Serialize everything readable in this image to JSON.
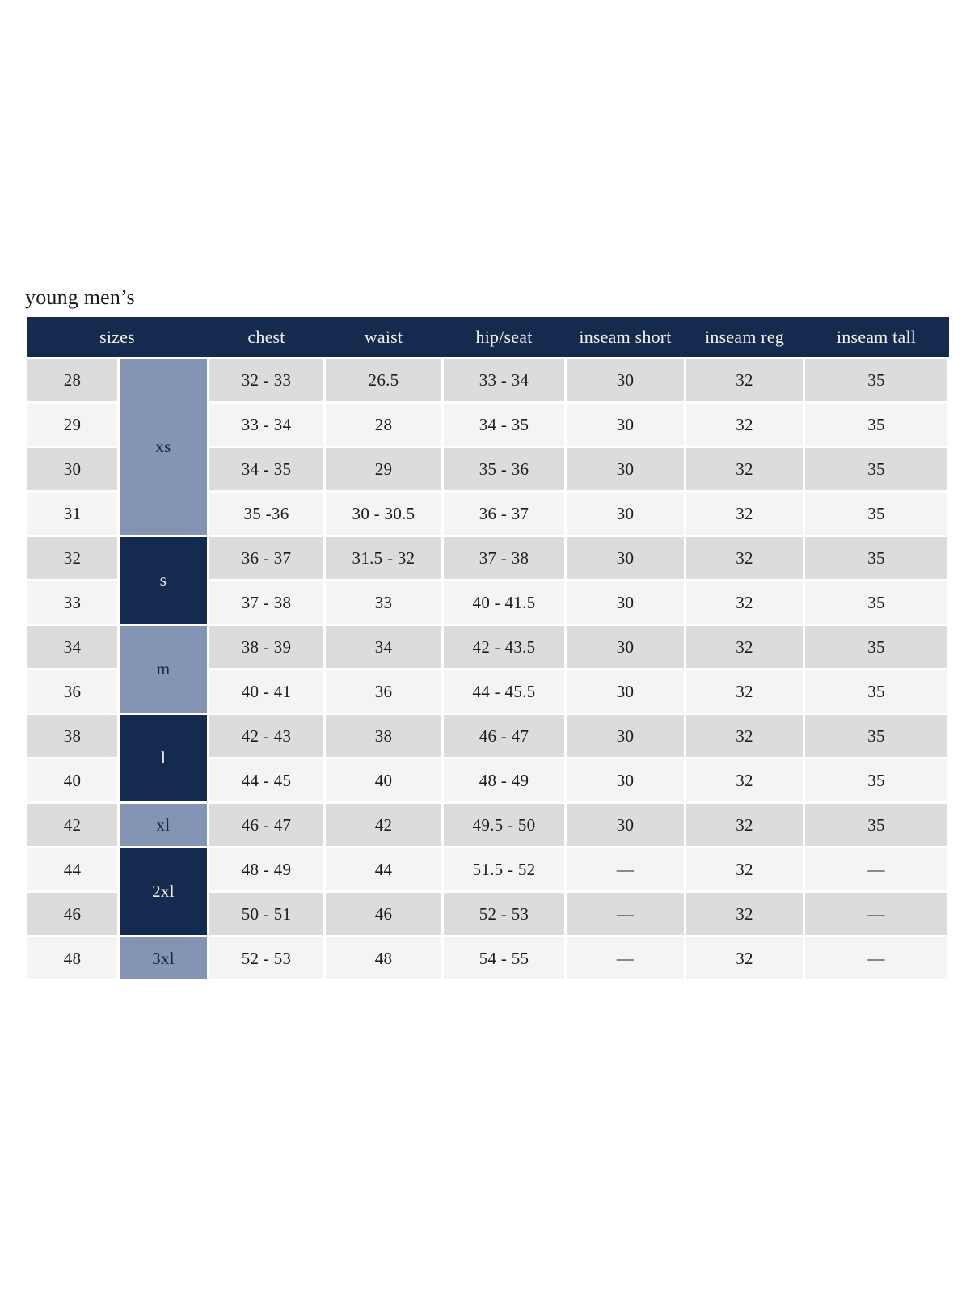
{
  "page": {
    "title": "young men’s"
  },
  "colors": {
    "header_bg": "#142a4e",
    "group_dark_bg": "#142a4e",
    "group_light_bg": "#8494b4",
    "row_odd_bg": "#dcdcdc",
    "row_even_bg": "#f4f4f2",
    "header_text": "#f4f3ef",
    "body_text": "#1c1c1c"
  },
  "table": {
    "headers": [
      "sizes",
      "chest",
      "waist",
      "hip/seat",
      "inseam short",
      "inseam reg",
      "inseam tall"
    ],
    "groups": [
      {
        "label": "xs",
        "rows": 4,
        "variant": "light"
      },
      {
        "label": "s",
        "rows": 2,
        "variant": "dark"
      },
      {
        "label": "m",
        "rows": 2,
        "variant": "light"
      },
      {
        "label": "l",
        "rows": 2,
        "variant": "dark"
      },
      {
        "label": "xl",
        "rows": 1,
        "variant": "light"
      },
      {
        "label": "2xl",
        "rows": 2,
        "variant": "dark"
      },
      {
        "label": "3xl",
        "rows": 1,
        "variant": "light"
      }
    ],
    "rows": [
      {
        "size": "28",
        "chest": "32 - 33",
        "waist": "26.5",
        "hip_seat": "33 - 34",
        "inseam_short": "30",
        "inseam_reg": "32",
        "inseam_tall": "35"
      },
      {
        "size": "29",
        "chest": "33 - 34",
        "waist": "28",
        "hip_seat": "34 - 35",
        "inseam_short": "30",
        "inseam_reg": "32",
        "inseam_tall": "35"
      },
      {
        "size": "30",
        "chest": "34 - 35",
        "waist": "29",
        "hip_seat": "35 - 36",
        "inseam_short": "30",
        "inseam_reg": "32",
        "inseam_tall": "35"
      },
      {
        "size": "31",
        "chest": "35 -36",
        "waist": "30 - 30.5",
        "hip_seat": "36 - 37",
        "inseam_short": "30",
        "inseam_reg": "32",
        "inseam_tall": "35"
      },
      {
        "size": "32",
        "chest": "36 - 37",
        "waist": "31.5 - 32",
        "hip_seat": "37 - 38",
        "inseam_short": "30",
        "inseam_reg": "32",
        "inseam_tall": "35"
      },
      {
        "size": "33",
        "chest": "37 - 38",
        "waist": "33",
        "hip_seat": "40 - 41.5",
        "inseam_short": "30",
        "inseam_reg": "32",
        "inseam_tall": "35"
      },
      {
        "size": "34",
        "chest": "38 - 39",
        "waist": "34",
        "hip_seat": "42 - 43.5",
        "inseam_short": "30",
        "inseam_reg": "32",
        "inseam_tall": "35"
      },
      {
        "size": "36",
        "chest": "40 - 41",
        "waist": "36",
        "hip_seat": "44 - 45.5",
        "inseam_short": "30",
        "inseam_reg": "32",
        "inseam_tall": "35"
      },
      {
        "size": "38",
        "chest": "42 - 43",
        "waist": "38",
        "hip_seat": "46 - 47",
        "inseam_short": "30",
        "inseam_reg": "32",
        "inseam_tall": "35"
      },
      {
        "size": "40",
        "chest": "44 - 45",
        "waist": "40",
        "hip_seat": "48 - 49",
        "inseam_short": "30",
        "inseam_reg": "32",
        "inseam_tall": "35"
      },
      {
        "size": "42",
        "chest": "46 - 47",
        "waist": "42",
        "hip_seat": "49.5 - 50",
        "inseam_short": "30",
        "inseam_reg": "32",
        "inseam_tall": "35"
      },
      {
        "size": "44",
        "chest": "48 - 49",
        "waist": "44",
        "hip_seat": "51.5 - 52",
        "inseam_short": "—",
        "inseam_reg": "32",
        "inseam_tall": "—"
      },
      {
        "size": "46",
        "chest": "50 - 51",
        "waist": "46",
        "hip_seat": "52 - 53",
        "inseam_short": "—",
        "inseam_reg": "32",
        "inseam_tall": "—"
      },
      {
        "size": "48",
        "chest": "52 - 53",
        "waist": "48",
        "hip_seat": "54 - 55",
        "inseam_short": "—",
        "inseam_reg": "32",
        "inseam_tall": "—"
      }
    ]
  }
}
